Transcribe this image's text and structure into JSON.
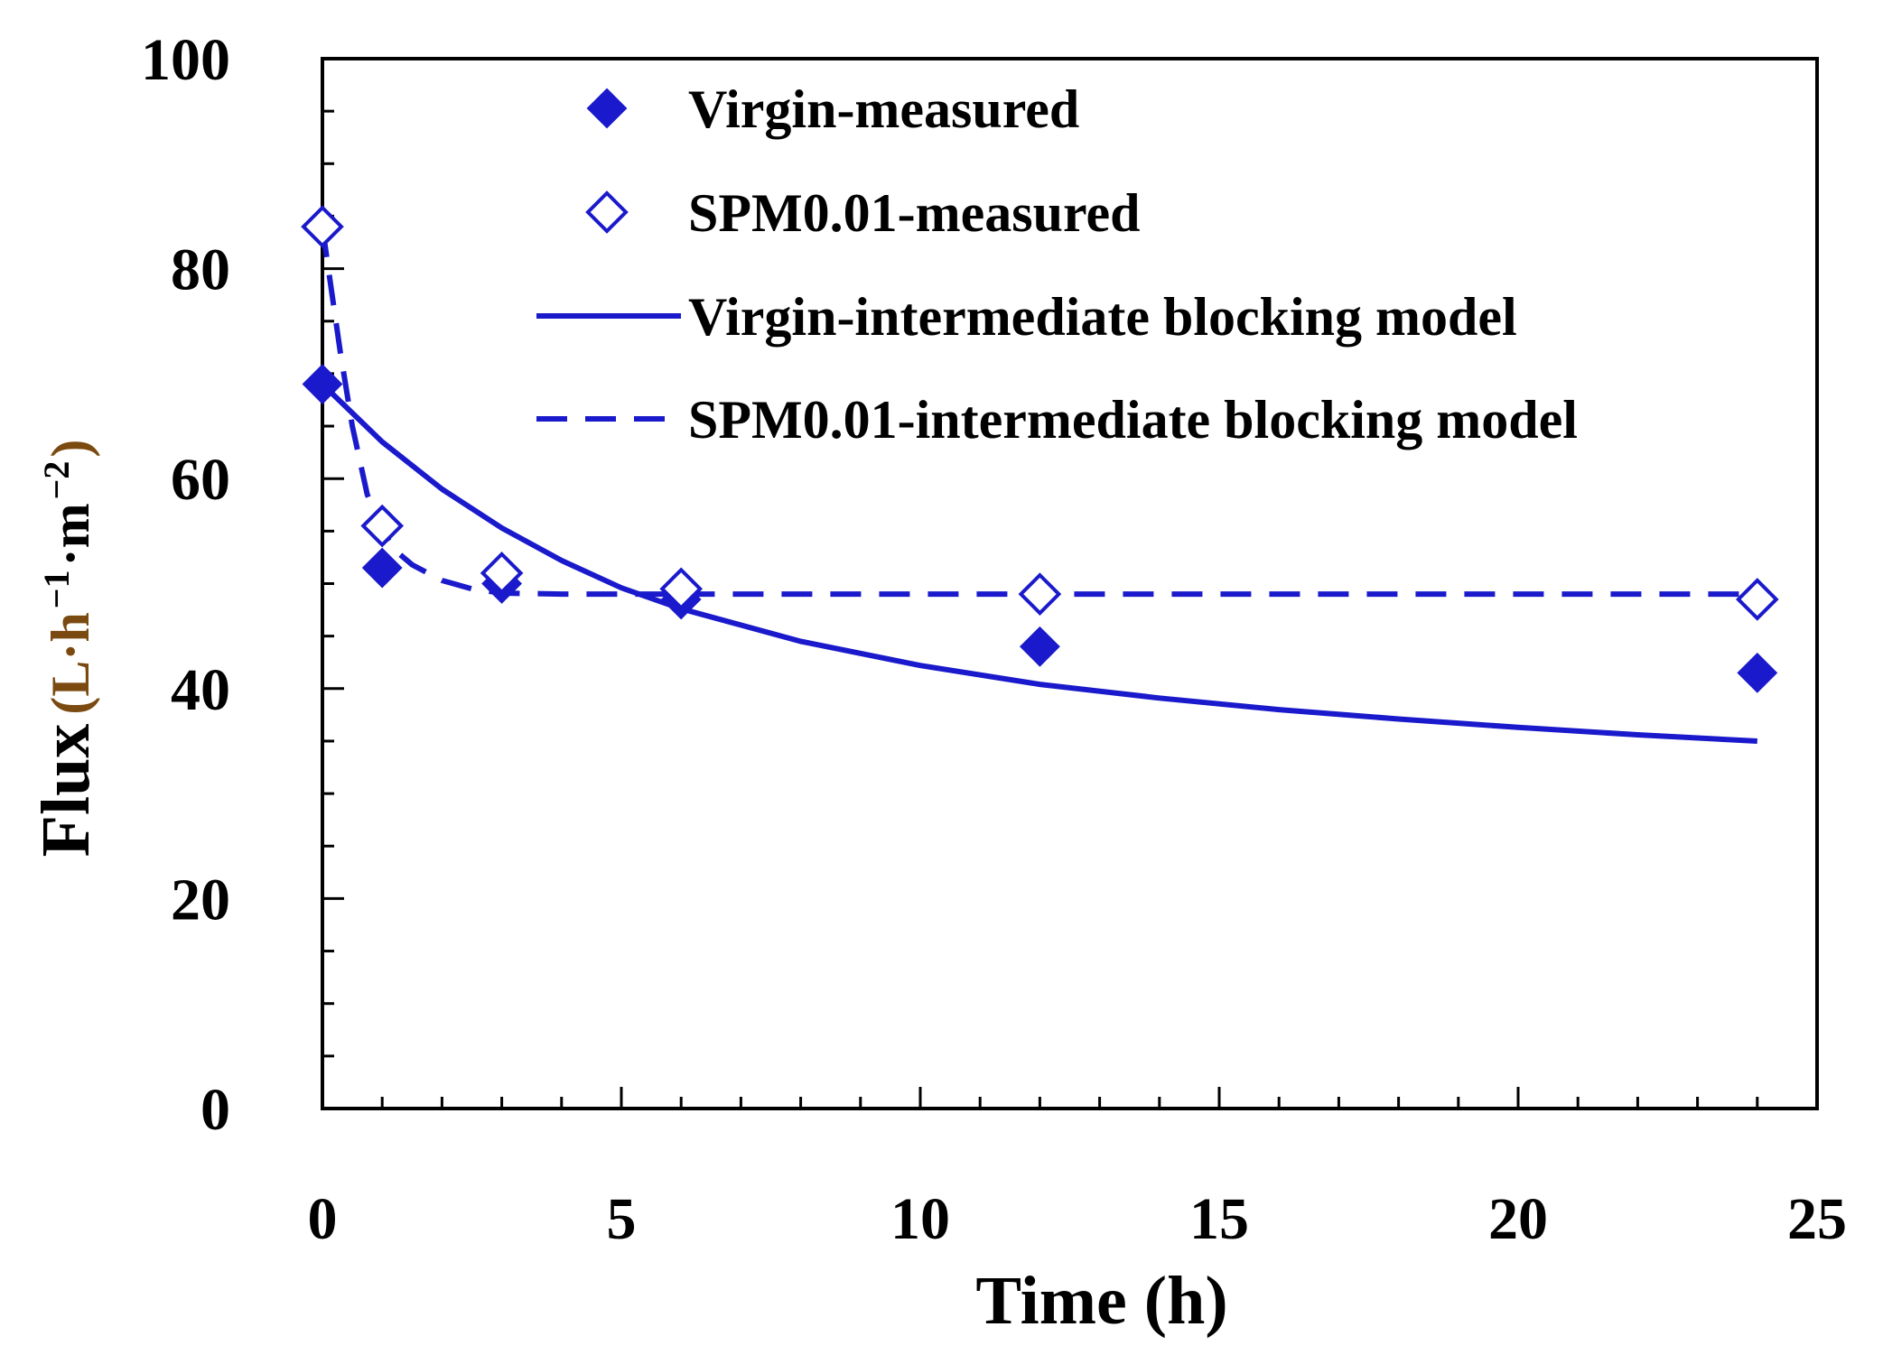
{
  "chart_data": {
    "type": "line",
    "title": "",
    "xlabel": "Time (h)",
    "ylabel": {
      "main": "Flux",
      "unit_prefix": "(L·h",
      "unit_exp1": "−1",
      "unit_mid": "·m",
      "unit_exp2": "−2",
      "unit_suffix": ")"
    },
    "xlim": [
      0,
      25
    ],
    "ylim": [
      0,
      100
    ],
    "x_major_ticks": [
      0,
      5,
      10,
      15,
      20,
      25
    ],
    "x_tick_labels": [
      "0",
      "5",
      "10",
      "15",
      "20",
      "25"
    ],
    "y_major_ticks": [
      0,
      20,
      40,
      60,
      80,
      100
    ],
    "y_tick_labels": [
      "0",
      "20",
      "40",
      "60",
      "80",
      "100"
    ],
    "x_minor_step": 1,
    "y_minor_step": 5,
    "grid": false,
    "legend_position": "top-right",
    "color": "#1a1acc",
    "series": [
      {
        "name": "Virgin-measured",
        "kind": "scatter",
        "marker": "filled-diamond",
        "x": [
          0,
          1,
          3,
          6,
          12,
          24
        ],
        "y": [
          69,
          51.5,
          50,
          48.5,
          44,
          41.5
        ]
      },
      {
        "name": "SPM0.01-measured",
        "kind": "scatter",
        "marker": "open-diamond",
        "x": [
          0,
          1,
          3,
          6,
          12,
          24
        ],
        "y": [
          84,
          55.5,
          51,
          49.5,
          49,
          48.5
        ]
      },
      {
        "name": "Virgin-intermediate blocking model",
        "kind": "line",
        "style": "solid",
        "x": [
          0,
          1,
          2,
          3,
          4,
          5,
          6,
          8,
          10,
          12,
          14,
          16,
          18,
          20,
          22,
          24
        ],
        "y": [
          69,
          63.5,
          59,
          55.3,
          52.2,
          49.6,
          47.6,
          44.5,
          42.2,
          40.4,
          39.1,
          38,
          37.1,
          36.3,
          35.6,
          35
        ]
      },
      {
        "name": "SPM0.01-intermediate blocking model",
        "kind": "line",
        "style": "dashed",
        "x": [
          0,
          0.15,
          0.3,
          0.5,
          0.75,
          1,
          1.25,
          1.5,
          2,
          2.5,
          3,
          4,
          6,
          12,
          24
        ],
        "y": [
          84,
          78,
          72,
          65,
          58.5,
          55,
          53,
          51.8,
          50.3,
          49.5,
          49.1,
          49,
          49,
          49,
          49
        ]
      }
    ]
  }
}
